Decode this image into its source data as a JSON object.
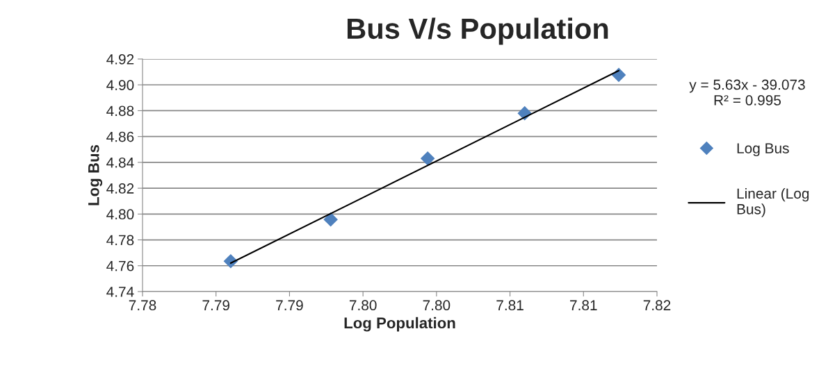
{
  "chart_data": {
    "type": "scatter",
    "title": "Bus V/s Population",
    "xlabel": "Log Population",
    "ylabel": "Log Bus",
    "series": [
      {
        "name": "Log Bus",
        "color": "#4f81bd",
        "marker": "diamond",
        "x": [
          7.786,
          7.7928,
          7.7994,
          7.806,
          7.8124
        ],
        "values": [
          4.7635,
          4.7958,
          4.843,
          4.878,
          4.9077
        ]
      },
      {
        "name": "Linear (Log Bus)",
        "type": "line",
        "color": "#000000",
        "line_style": "solid",
        "x": [
          7.786,
          7.8124
        ],
        "values": [
          4.762,
          4.911
        ]
      }
    ],
    "annotations": [
      "y = 5.63x - 39.073\nR² = 0.995"
    ],
    "xlim": [
      7.78,
      7.815
    ],
    "xticks": [
      {
        "value": 7.78,
        "label": "7.78"
      },
      {
        "value": 7.785,
        "label": "7.79"
      },
      {
        "value": 7.79,
        "label": "7.79"
      },
      {
        "value": 7.795,
        "label": "7.80"
      },
      {
        "value": 7.8,
        "label": "7.80"
      },
      {
        "value": 7.805,
        "label": "7.81"
      },
      {
        "value": 7.81,
        "label": "7.81"
      },
      {
        "value": 7.815,
        "label": "7.82"
      }
    ],
    "ylim": [
      4.74,
      4.92
    ],
    "yticks": [
      {
        "value": 4.74,
        "label": "4.74"
      },
      {
        "value": 4.76,
        "label": "4.76"
      },
      {
        "value": 4.78,
        "label": "4.78"
      },
      {
        "value": 4.8,
        "label": "4.80"
      },
      {
        "value": 4.82,
        "label": "4.82"
      },
      {
        "value": 4.84,
        "label": "4.84"
      },
      {
        "value": 4.86,
        "label": "4.86"
      },
      {
        "value": 4.88,
        "label": "4.88"
      },
      {
        "value": 4.9,
        "label": "4.90"
      },
      {
        "value": 4.92,
        "label": "4.92"
      }
    ],
    "grid": "y",
    "legend": "right"
  }
}
